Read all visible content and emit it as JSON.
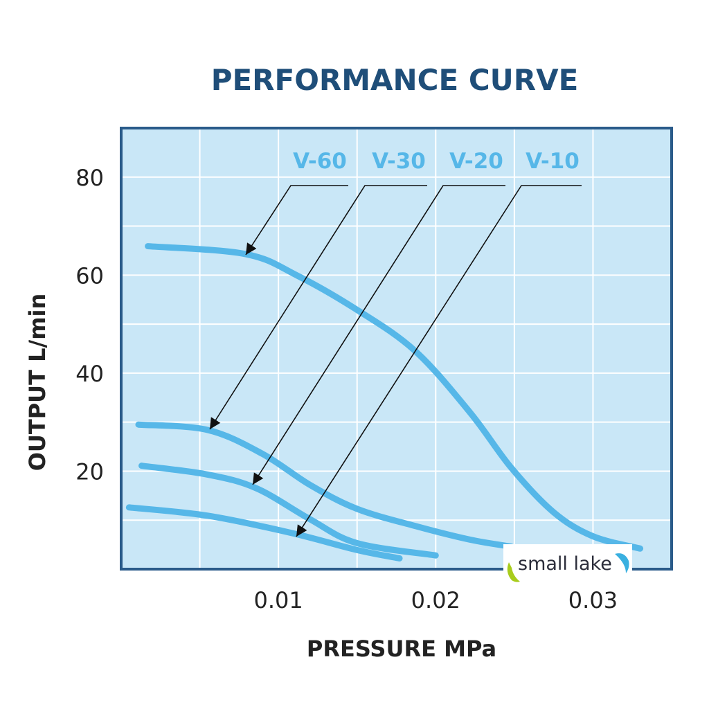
{
  "chart_data": {
    "type": "line",
    "title": "PERFORMANCE CURVE",
    "xlabel": "PRESSURE MPa",
    "ylabel": "OUTPUT L/min",
    "xlim": [
      0,
      0.035
    ],
    "ylim": [
      0,
      90
    ],
    "xticks": [
      0.01,
      0.02,
      0.03
    ],
    "xtick_labels": [
      "0.01",
      "0.02",
      "0.03"
    ],
    "yticks": [
      20,
      40,
      60,
      80
    ],
    "ytick_labels": [
      "20",
      "40",
      "60",
      "80"
    ],
    "grid": true,
    "grid_x_step": 0.005,
    "grid_y_step": 10,
    "legend_placement": "top, labels with arrows pointing to curves",
    "series": [
      {
        "name": "V-60",
        "x": [
          0.0017,
          0.0079,
          0.0112,
          0.015,
          0.0187,
          0.0222,
          0.0248,
          0.0275,
          0.03,
          0.033
        ],
        "y": [
          65.9,
          64.3,
          59.9,
          52.9,
          44.5,
          31.9,
          20.7,
          11.6,
          6.7,
          4.2
        ]
      },
      {
        "name": "V-30",
        "x": [
          0.0011,
          0.0055,
          0.009,
          0.012,
          0.015,
          0.0187,
          0.0222,
          0.0248
        ],
        "y": [
          29.5,
          28.4,
          23.5,
          17.2,
          12.3,
          8.8,
          6.0,
          4.6
        ]
      },
      {
        "name": "V-20",
        "x": [
          0.0013,
          0.0055,
          0.0086,
          0.012,
          0.015,
          0.02
        ],
        "y": [
          21.1,
          19.3,
          16.5,
          10.2,
          5.3,
          2.8
        ]
      },
      {
        "name": "V-10",
        "x": [
          0.0005,
          0.0055,
          0.0108,
          0.015,
          0.0177
        ],
        "y": [
          12.6,
          10.9,
          7.4,
          3.9,
          2.2
        ]
      }
    ],
    "colors": {
      "curve": "#56b7e8",
      "background": "#c9e7f7",
      "border": "#2a5b8a",
      "title": "#1f4e79"
    }
  },
  "watermark": {
    "text": "small lake"
  }
}
